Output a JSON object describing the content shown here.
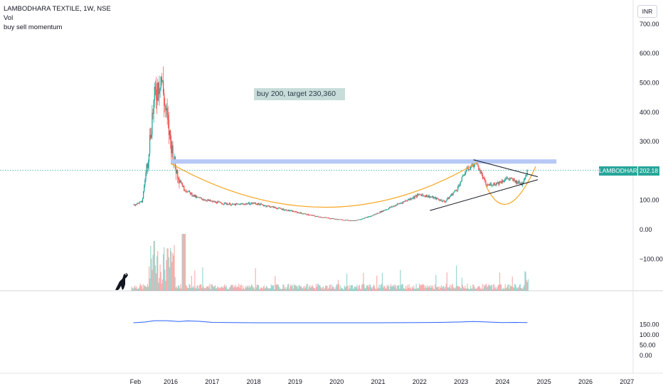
{
  "legend": {
    "symbol": "LAMBODHARA TEXTILE, 1W, NSE",
    "volume": "Vol",
    "indicator": "buy sell momentum"
  },
  "currency": "INR",
  "annotation": "buy 200, target 230,360",
  "price_tag": {
    "name": "LAMBODHARA",
    "value": "202.18"
  },
  "colors": {
    "up": "#26a69a",
    "down": "#ef5350",
    "cup_curve": "#f5a623",
    "resistance_band": "#b7c8f5",
    "momentum_line": "#2962ff",
    "triangle_lines": "#131722",
    "price_line": "#26a69a"
  },
  "chart_data": [
    {
      "type": "candlestick",
      "title": "LAMBODHARA TEXTILE, 1W, NSE",
      "x_ticks": [
        "Feb",
        "2016",
        "2017",
        "2018",
        "2019",
        "2020",
        "2021",
        "2022",
        "2023",
        "2024",
        "2025",
        "2026",
        "2027"
      ],
      "y_ticks": [
        "700.00",
        "600.00",
        "500.00",
        "400.00",
        "300.00",
        "200.00",
        "100.00",
        "0.00",
        "−100.00"
      ],
      "ylim": [
        -110,
        720
      ],
      "x": [
        2015.1,
        2015.3,
        2015.45,
        2015.55,
        2015.65,
        2015.75,
        2015.85,
        2015.95,
        2016.1,
        2016.3,
        2016.6,
        2017.0,
        2017.5,
        2018.0,
        2018.5,
        2019.0,
        2019.5,
        2020.0,
        2020.4,
        2020.8,
        2021.2,
        2021.6,
        2022.0,
        2022.3,
        2022.6,
        2022.9,
        2023.1,
        2023.35,
        2023.6,
        2023.9,
        2024.1,
        2024.3,
        2024.45,
        2024.6
      ],
      "close": [
        85,
        95,
        260,
        400,
        480,
        530,
        420,
        330,
        210,
        140,
        110,
        95,
        85,
        90,
        75,
        60,
        45,
        35,
        30,
        45,
        70,
        95,
        120,
        110,
        95,
        140,
        200,
        230,
        150,
        160,
        175,
        165,
        155,
        202
      ],
      "current_price": 202.18,
      "resistance": 232,
      "annotation": "buy 200, target 230,360"
    },
    {
      "type": "line",
      "title": "buy sell momentum",
      "y_ticks": [
        "150.00",
        "100.00",
        "50.00",
        "0.00"
      ],
      "ylim": [
        -20,
        165
      ],
      "x": [
        2015.1,
        2015.4,
        2015.6,
        2015.9,
        2016.2,
        2016.4,
        2016.7,
        2017.0,
        2018.0,
        2019.0,
        2020.0,
        2021.0,
        2022.0,
        2022.5,
        2023.0,
        2023.3,
        2023.6,
        2024.0,
        2024.3,
        2024.6
      ],
      "values": [
        158,
        162,
        168,
        168,
        164,
        167,
        165,
        160,
        158,
        158,
        158,
        158,
        159,
        160,
        162,
        164,
        162,
        159,
        160,
        159
      ]
    }
  ]
}
